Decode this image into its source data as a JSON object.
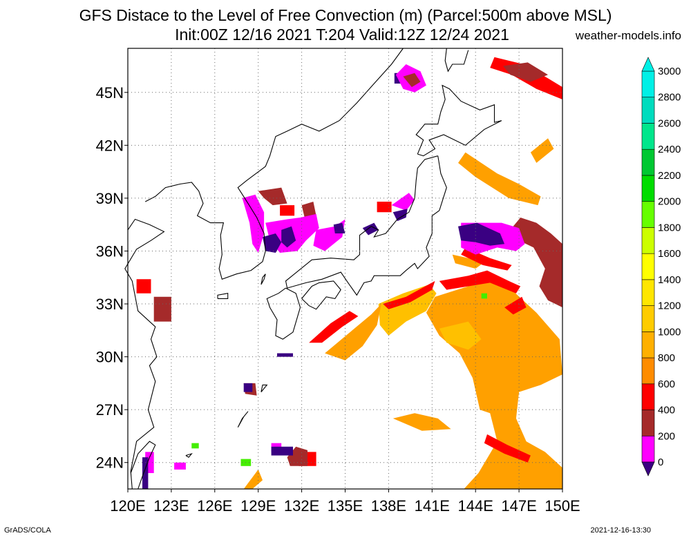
{
  "title_line1": "GFS Distace to the Level of Free Convection (m) (Parcel:500m above MSL)",
  "title_line2": "Init:00Z 12/16 2021 T:204 Valid:12Z 12/24 2021",
  "credit": "weather-models.info",
  "footer_left": "GrADS/COLA",
  "footer_right": "2021-12-16-13:30",
  "map": {
    "lon_range": [
      120,
      150
    ],
    "lat_range": [
      22.5,
      47.5
    ],
    "lon_ticks": [
      "120E",
      "123E",
      "126E",
      "129E",
      "132E",
      "135E",
      "138E",
      "141E",
      "144E",
      "147E",
      "150E"
    ],
    "lon_tick_values": [
      120,
      123,
      126,
      129,
      132,
      135,
      138,
      141,
      144,
      147,
      150
    ],
    "lat_ticks": [
      "24N",
      "27N",
      "30N",
      "33N",
      "36N",
      "39N",
      "42N",
      "45N"
    ],
    "lat_tick_values": [
      24,
      27,
      30,
      33,
      36,
      39,
      42,
      45
    ],
    "grid": "dotted"
  },
  "colorbar": {
    "labels": [
      "0",
      "200",
      "400",
      "600",
      "800",
      "1000",
      "1200",
      "1400",
      "1600",
      "1800",
      "2000",
      "2200",
      "2400",
      "2600",
      "2800",
      "3000"
    ],
    "colors": [
      "#3a0082",
      "#ff00ff",
      "#a52a2a",
      "#ff0000",
      "#ff8c00",
      "#ffb000",
      "#ffcc00",
      "#ffe600",
      "#ffff00",
      "#ccff00",
      "#66ff00",
      "#00dd00",
      "#00c832",
      "#00e68c",
      "#00dcbe",
      "#00f0e6"
    ],
    "unit": "m"
  },
  "colors": {
    "purple": "#3a0082",
    "magenta": "#ff00ff",
    "brown": "#a52a2a",
    "red": "#ff0000",
    "orange": "#ffa000",
    "amber": "#ffc000",
    "green": "#44ee00"
  },
  "icons": {
    "colorbar_top": "triangle-up-arrow",
    "colorbar_bottom": "triangle-down-arrow"
  }
}
